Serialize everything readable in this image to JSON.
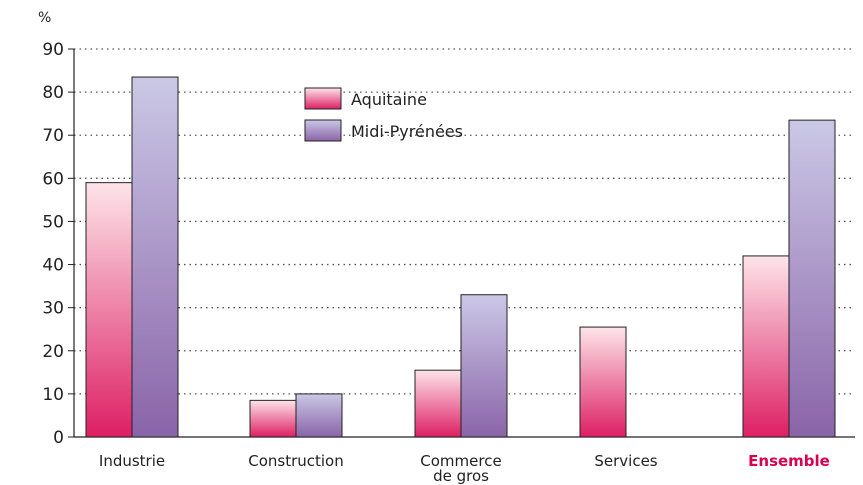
{
  "chart_data": {
    "type": "bar",
    "unit_label": "%",
    "categories": [
      "Industrie",
      "Construction",
      "Commerce\nde gros",
      "Services",
      "Ensemble"
    ],
    "highlighted_category": "Ensemble",
    "series": [
      {
        "name": "Aquitaine",
        "values": [
          59,
          8.5,
          15.5,
          25.5,
          42
        ]
      },
      {
        "name": "Midi-Pyrénées",
        "values": [
          83.5,
          10,
          33,
          null,
          73.5
        ]
      }
    ],
    "ylim": [
      0,
      90
    ],
    "yticks": [
      0,
      10,
      20,
      30,
      40,
      50,
      60,
      70,
      80,
      90
    ],
    "grid": true,
    "legend_position": "top-center",
    "colors": {
      "aquitaine_top": "#fde4ea",
      "aquitaine_bottom": "#dd1f63",
      "midi_top": "#cbc8e6",
      "midi_bottom": "#8a64a8",
      "highlight_text": "#d9004f"
    }
  }
}
